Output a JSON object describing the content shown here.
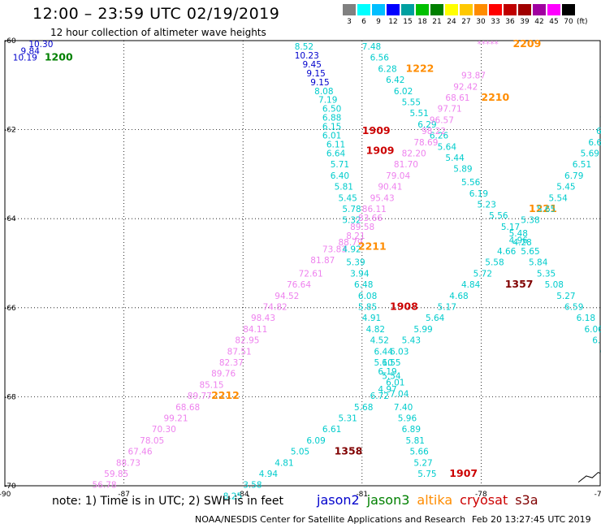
{
  "header": {
    "title": "12:00 – 23:59 UTC 02/19/2019",
    "subtitle": "12 hour collection of altimeter wave heights"
  },
  "scale": {
    "labels": [
      "3",
      "6",
      "9",
      "12",
      "15",
      "18",
      "21",
      "24",
      "27",
      "30",
      "33",
      "36",
      "39",
      "42",
      "45",
      "70"
    ],
    "colors": [
      "#808080",
      "#00ffff",
      "#00bfff",
      "#0000ff",
      "#00a0a0",
      "#00c000",
      "#008000",
      "#ffff00",
      "#ffc800",
      "#ff8c00",
      "#ff0000",
      "#c00000",
      "#a00000",
      "#a000a0",
      "#ff00ff",
      "#000000"
    ],
    "unit": "(ft)"
  },
  "axes": {
    "lon_labels": [
      "-90",
      "-87",
      "-84",
      "-81",
      "-78",
      "-75"
    ],
    "lat_labels": [
      "-60",
      "-62",
      "-64",
      "-66",
      "-68",
      "-70"
    ],
    "grid": true
  },
  "satellite_colors": {
    "jason2": "#0000cc",
    "jason3": "#008000",
    "altika": "#ff8c00",
    "cryosat": "#cc0000",
    "s3a": "#800000",
    "cyan": "#00cccc",
    "pink": "#ee82ee",
    "orange": "#ff8c00"
  },
  "map_labels": [
    {
      "t": "10.30",
      "lon": -89.4,
      "lat": -60.15,
      "c": "jason2"
    },
    {
      "t": "9.84",
      "lon": -89.6,
      "lat": -60.3,
      "c": "jason2"
    },
    {
      "t": "10.19",
      "lon": -89.8,
      "lat": -60.45,
      "c": "jason2"
    },
    {
      "t": "1200",
      "lon": -89.0,
      "lat": -60.45,
      "c": "jason3",
      "time": true
    },
    {
      "t": "8.52",
      "lon": -82.7,
      "lat": -60.2,
      "c": "cyan"
    },
    {
      "t": "10.23",
      "lon": -82.7,
      "lat": -60.4,
      "c": "jason2"
    },
    {
      "t": "9.45",
      "lon": -82.5,
      "lat": -60.6,
      "c": "jason2"
    },
    {
      "t": "9.15",
      "lon": -82.4,
      "lat": -60.8,
      "c": "jason2"
    },
    {
      "t": "9.15",
      "lon": -82.3,
      "lat": -61.0,
      "c": "jason2"
    },
    {
      "t": "8.08",
      "lon": -82.2,
      "lat": -61.2,
      "c": "cyan"
    },
    {
      "t": "7.19",
      "lon": -82.1,
      "lat": -61.4,
      "c": "cyan"
    },
    {
      "t": "6.50",
      "lon": -82.0,
      "lat": -61.6,
      "c": "cyan"
    },
    {
      "t": "6.88",
      "lon": -82.0,
      "lat": -61.8,
      "c": "cyan"
    },
    {
      "t": "6.15",
      "lon": -82.0,
      "lat": -62.0,
      "c": "cyan"
    },
    {
      "t": "6.01",
      "lon": -82.0,
      "lat": -62.2,
      "c": "cyan"
    },
    {
      "t": "6.11",
      "lon": -81.9,
      "lat": -62.4,
      "c": "cyan"
    },
    {
      "t": "6.64",
      "lon": -81.9,
      "lat": -62.6,
      "c": "cyan"
    },
    {
      "t": "5.71",
      "lon": -81.8,
      "lat": -62.85,
      "c": "cyan"
    },
    {
      "t": "6.40",
      "lon": -81.8,
      "lat": -63.1,
      "c": "cyan"
    },
    {
      "t": "5.81",
      "lon": -81.7,
      "lat": -63.35,
      "c": "cyan"
    },
    {
      "t": "5.45",
      "lon": -81.6,
      "lat": -63.6,
      "c": "cyan"
    },
    {
      "t": "5.78",
      "lon": -81.5,
      "lat": -63.85,
      "c": "cyan"
    },
    {
      "t": "5.32",
      "lon": -81.5,
      "lat": -64.1,
      "c": "cyan"
    },
    {
      "t": "1909",
      "lon": -81.0,
      "lat": -62.1,
      "c": "cryosat",
      "time": true
    },
    {
      "t": "1909",
      "lon": -80.9,
      "lat": -62.55,
      "c": "cryosat",
      "time": true
    },
    {
      "t": "7.48",
      "lon": -81.0,
      "lat": -60.2,
      "c": "cyan"
    },
    {
      "t": "6.56",
      "lon": -80.8,
      "lat": -60.45,
      "c": "cyan"
    },
    {
      "t": "6.28",
      "lon": -80.6,
      "lat": -60.7,
      "c": "cyan"
    },
    {
      "t": "1222",
      "lon": -79.9,
      "lat": -60.7,
      "c": "altika",
      "time": true
    },
    {
      "t": "6.42",
      "lon": -80.4,
      "lat": -60.95,
      "c": "cyan"
    },
    {
      "t": "6.02",
      "lon": -80.2,
      "lat": -61.2,
      "c": "cyan"
    },
    {
      "t": "5.55",
      "lon": -80.0,
      "lat": -61.45,
      "c": "cyan"
    },
    {
      "t": "5.51",
      "lon": -79.8,
      "lat": -61.7,
      "c": "cyan"
    },
    {
      "t": "6.29",
      "lon": -79.6,
      "lat": -61.95,
      "c": "cyan"
    },
    {
      "t": "6.26",
      "lon": -79.3,
      "lat": -62.2,
      "c": "cyan"
    },
    {
      "t": "5.64",
      "lon": -79.1,
      "lat": -62.45,
      "c": "cyan"
    },
    {
      "t": "5.44",
      "lon": -78.9,
      "lat": -62.7,
      "c": "cyan"
    },
    {
      "t": "5.89",
      "lon": -78.7,
      "lat": -62.95,
      "c": "cyan"
    },
    {
      "t": "5.56",
      "lon": -78.5,
      "lat": -63.25,
      "c": "cyan"
    },
    {
      "t": "6.19",
      "lon": -78.3,
      "lat": -63.5,
      "c": "cyan"
    },
    {
      "t": "5.23",
      "lon": -78.1,
      "lat": -63.75,
      "c": "cyan"
    },
    {
      "t": "5.56",
      "lon": -77.8,
      "lat": -64.0,
      "c": "cyan"
    },
    {
      "t": "5.17",
      "lon": -77.5,
      "lat": -64.25,
      "c": "cyan"
    },
    {
      "t": "5.48",
      "lon": -77.3,
      "lat": -64.4,
      "c": "cyan"
    },
    {
      "t": "4.28",
      "lon": -77.2,
      "lat": -64.6,
      "c": "cyan"
    },
    {
      "t": "5.65",
      "lon": -77.0,
      "lat": -64.8,
      "c": "cyan"
    },
    {
      "t": "5.84",
      "lon": -76.8,
      "lat": -65.05,
      "c": "cyan"
    },
    {
      "t": "5.35",
      "lon": -76.6,
      "lat": -65.3,
      "c": "cyan"
    },
    {
      "t": "5.08",
      "lon": -76.4,
      "lat": -65.55,
      "c": "cyan"
    },
    {
      "t": "5.27",
      "lon": -76.1,
      "lat": -65.8,
      "c": "cyan"
    },
    {
      "t": "6.59",
      "lon": -75.9,
      "lat": -66.05,
      "c": "cyan"
    },
    {
      "t": "6.18",
      "lon": -75.6,
      "lat": -66.3,
      "c": "cyan"
    },
    {
      "t": "6.06",
      "lon": -75.4,
      "lat": -66.55,
      "c": "cyan"
    },
    {
      "t": "6.15",
      "lon": -75.2,
      "lat": -66.8,
      "c": "cyan"
    },
    {
      "t": "6.1",
      "lon": -75.0,
      "lat": -67.05,
      "c": "cyan"
    },
    {
      "t": "*****",
      "lon": -78.1,
      "lat": -60.15,
      "c": "pink"
    },
    {
      "t": "2209",
      "lon": -77.2,
      "lat": -60.15,
      "c": "altika",
      "time": true
    },
    {
      "t": "93.87",
      "lon": -78.5,
      "lat": -60.85,
      "c": "pink"
    },
    {
      "t": "92.42",
      "lon": -78.7,
      "lat": -61.1,
      "c": "pink"
    },
    {
      "t": "68.61",
      "lon": -78.9,
      "lat": -61.35,
      "c": "pink"
    },
    {
      "t": "2210",
      "lon": -78.0,
      "lat": -61.35,
      "c": "altika",
      "time": true
    },
    {
      "t": "97.71",
      "lon": -79.1,
      "lat": -61.6,
      "c": "pink"
    },
    {
      "t": "96.57",
      "lon": -79.3,
      "lat": -61.85,
      "c": "pink"
    },
    {
      "t": "98.22",
      "lon": -79.5,
      "lat": -62.1,
      "c": "pink"
    },
    {
      "t": "78.69",
      "lon": -79.7,
      "lat": -62.35,
      "c": "pink"
    },
    {
      "t": "82.20",
      "lon": -80.0,
      "lat": -62.6,
      "c": "pink"
    },
    {
      "t": "81.70",
      "lon": -80.2,
      "lat": -62.85,
      "c": "pink"
    },
    {
      "t": "79.04",
      "lon": -80.4,
      "lat": -63.1,
      "c": "pink"
    },
    {
      "t": "90.41",
      "lon": -80.6,
      "lat": -63.35,
      "c": "pink"
    },
    {
      "t": "95.43",
      "lon": -80.8,
      "lat": -63.6,
      "c": "pink"
    },
    {
      "t": "86.11",
      "lon": -81.0,
      "lat": -63.85,
      "c": "pink"
    },
    {
      "t": "83.66",
      "lon": -81.1,
      "lat": -64.05,
      "c": "pink"
    },
    {
      "t": "89.58",
      "lon": -81.3,
      "lat": -64.25,
      "c": "pink"
    },
    {
      "t": "8.21",
      "lon": -81.4,
      "lat": -64.45,
      "c": "pink"
    },
    {
      "t": "88.79",
      "lon": -81.6,
      "lat": -64.6,
      "c": "pink"
    },
    {
      "t": "73.83",
      "lon": -82.0,
      "lat": -64.75,
      "c": "pink"
    },
    {
      "t": "81.87",
      "lon": -82.3,
      "lat": -65.0,
      "c": "pink"
    },
    {
      "t": "72.61",
      "lon": -82.6,
      "lat": -65.3,
      "c": "pink"
    },
    {
      "t": "76.64",
      "lon": -82.9,
      "lat": -65.55,
      "c": "pink"
    },
    {
      "t": "94.52",
      "lon": -83.2,
      "lat": -65.8,
      "c": "pink"
    },
    {
      "t": "74.82",
      "lon": -83.5,
      "lat": -66.05,
      "c": "pink"
    },
    {
      "t": "98.43",
      "lon": -83.8,
      "lat": -66.3,
      "c": "pink"
    },
    {
      "t": "84.11",
      "lon": -84.0,
      "lat": -66.55,
      "c": "pink"
    },
    {
      "t": "82.95",
      "lon": -84.2,
      "lat": -66.8,
      "c": "pink"
    },
    {
      "t": "87.51",
      "lon": -84.4,
      "lat": -67.05,
      "c": "pink"
    },
    {
      "t": "82.37",
      "lon": -84.6,
      "lat": -67.3,
      "c": "pink"
    },
    {
      "t": "89.76",
      "lon": -84.8,
      "lat": -67.55,
      "c": "pink"
    },
    {
      "t": "85.15",
      "lon": -85.1,
      "lat": -67.8,
      "c": "pink"
    },
    {
      "t": "89.77",
      "lon": -85.4,
      "lat": -68.05,
      "c": "pink"
    },
    {
      "t": "2212",
      "lon": -84.8,
      "lat": -68.05,
      "c": "altika",
      "time": true
    },
    {
      "t": "68.68",
      "lon": -85.7,
      "lat": -68.3,
      "c": "pink"
    },
    {
      "t": "99.21",
      "lon": -86.0,
      "lat": -68.55,
      "c": "pink"
    },
    {
      "t": "70.30",
      "lon": -86.3,
      "lat": -68.8,
      "c": "pink"
    },
    {
      "t": "78.05",
      "lon": -86.6,
      "lat": -69.05,
      "c": "pink"
    },
    {
      "t": "67.46",
      "lon": -86.9,
      "lat": -69.3,
      "c": "pink"
    },
    {
      "t": "88.73",
      "lon": -87.2,
      "lat": -69.55,
      "c": "pink"
    },
    {
      "t": "59.85",
      "lon": -87.5,
      "lat": -69.8,
      "c": "pink"
    },
    {
      "t": "56.78",
      "lon": -87.8,
      "lat": -70.05,
      "c": "pink"
    },
    {
      "t": "4.92",
      "lon": -81.5,
      "lat": -64.75,
      "c": "cyan"
    },
    {
      "t": "2211",
      "lon": -81.1,
      "lat": -64.7,
      "c": "altika",
      "time": true
    },
    {
      "t": "5.39",
      "lon": -81.4,
      "lat": -65.05,
      "c": "cyan"
    },
    {
      "t": "3.94",
      "lon": -81.3,
      "lat": -65.3,
      "c": "cyan"
    },
    {
      "t": "6.48",
      "lon": -81.2,
      "lat": -65.55,
      "c": "cyan"
    },
    {
      "t": "6.08",
      "lon": -81.1,
      "lat": -65.8,
      "c": "cyan"
    },
    {
      "t": "5.85",
      "lon": -81.1,
      "lat": -66.05,
      "c": "cyan"
    },
    {
      "t": "1908",
      "lon": -80.3,
      "lat": -66.05,
      "c": "cryosat",
      "time": true
    },
    {
      "t": "4.91",
      "lon": -81.0,
      "lat": -66.3,
      "c": "cyan"
    },
    {
      "t": "4.82",
      "lon": -80.9,
      "lat": -66.55,
      "c": "cyan"
    },
    {
      "t": "4.52",
      "lon": -80.8,
      "lat": -66.8,
      "c": "cyan"
    },
    {
      "t": "6.44",
      "lon": -80.7,
      "lat": -67.05,
      "c": "cyan"
    },
    {
      "t": "5.10",
      "lon": -80.7,
      "lat": -67.3,
      "c": "cyan"
    },
    {
      "t": "6.19",
      "lon": -80.6,
      "lat": -67.5,
      "c": "cyan"
    },
    {
      "t": "5.54",
      "lon": -80.5,
      "lat": -67.6,
      "c": "cyan"
    },
    {
      "t": "6.01",
      "lon": -80.4,
      "lat": -67.75,
      "c": "cyan"
    },
    {
      "t": "4.97",
      "lon": -80.6,
      "lat": -67.9,
      "c": "cyan"
    },
    {
      "t": "7.04",
      "lon": -80.3,
      "lat": -68.0,
      "c": "cyan"
    },
    {
      "t": "6.72",
      "lon": -80.8,
      "lat": -68.05,
      "c": "cyan"
    },
    {
      "t": "7.40",
      "lon": -80.2,
      "lat": -68.3,
      "c": "cyan"
    },
    {
      "t": "5.68",
      "lon": -81.2,
      "lat": -68.3,
      "c": "cyan"
    },
    {
      "t": "5.96",
      "lon": -80.1,
      "lat": -68.55,
      "c": "cyan"
    },
    {
      "t": "5.31",
      "lon": -81.6,
      "lat": -68.55,
      "c": "cyan"
    },
    {
      "t": "6.89",
      "lon": -80.0,
      "lat": -68.8,
      "c": "cyan"
    },
    {
      "t": "6.61",
      "lon": -82.0,
      "lat": -68.8,
      "c": "cyan"
    },
    {
      "t": "5.81",
      "lon": -79.9,
      "lat": -69.05,
      "c": "cyan"
    },
    {
      "t": "6.09",
      "lon": -82.4,
      "lat": -69.05,
      "c": "cyan"
    },
    {
      "t": "5.66",
      "lon": -79.8,
      "lat": -69.3,
      "c": "cyan"
    },
    {
      "t": "5.05",
      "lon": -82.8,
      "lat": -69.3,
      "c": "cyan"
    },
    {
      "t": "1358",
      "lon": -81.7,
      "lat": -69.3,
      "c": "s3a",
      "time": true
    },
    {
      "t": "5.27",
      "lon": -79.7,
      "lat": -69.55,
      "c": "cyan"
    },
    {
      "t": "4.81",
      "lon": -83.2,
      "lat": -69.55,
      "c": "cyan"
    },
    {
      "t": "5.75",
      "lon": -79.6,
      "lat": -69.8,
      "c": "cyan"
    },
    {
      "t": "1907",
      "lon": -78.8,
      "lat": -69.8,
      "c": "cryosat",
      "time": true
    },
    {
      "t": "4.94",
      "lon": -83.6,
      "lat": -69.8,
      "c": "cyan"
    },
    {
      "t": "3.58",
      "lon": -84.0,
      "lat": -70.05,
      "c": "cyan"
    },
    {
      "t": "8.25",
      "lon": -84.5,
      "lat": -70.3,
      "c": "cyan"
    },
    {
      "t": "5.99",
      "lon": -79.7,
      "lat": -66.55,
      "c": "cyan"
    },
    {
      "t": "5.64",
      "lon": -79.4,
      "lat": -66.3,
      "c": "cyan"
    },
    {
      "t": "5.17",
      "lon": -79.1,
      "lat": -66.05,
      "c": "cyan"
    },
    {
      "t": "4.68",
      "lon": -78.8,
      "lat": -65.8,
      "c": "cyan"
    },
    {
      "t": "4.84",
      "lon": -78.5,
      "lat": -65.55,
      "c": "cyan"
    },
    {
      "t": "5.72",
      "lon": -78.2,
      "lat": -65.3,
      "c": "cyan"
    },
    {
      "t": "5.58",
      "lon": -77.9,
      "lat": -65.05,
      "c": "cyan"
    },
    {
      "t": "4.66",
      "lon": -77.6,
      "lat": -64.8,
      "c": "cyan"
    },
    {
      "t": "4.96",
      "lon": -77.3,
      "lat": -64.55,
      "c": "cyan"
    },
    {
      "t": "1357",
      "lon": -77.4,
      "lat": -65.55,
      "c": "s3a",
      "time": true
    },
    {
      "t": "5.43",
      "lon": -80.0,
      "lat": -66.8,
      "c": "cyan"
    },
    {
      "t": "6.03",
      "lon": -80.3,
      "lat": -67.05,
      "c": "cyan"
    },
    {
      "t": "6.55",
      "lon": -80.5,
      "lat": -67.3,
      "c": "cyan"
    },
    {
      "t": "5.38",
      "lon": -77.0,
      "lat": -64.1,
      "c": "cyan"
    },
    {
      "t": "1221",
      "lon": -76.8,
      "lat": -63.85,
      "c": "altika",
      "time": true
    },
    {
      "t": "5.65",
      "lon": -76.6,
      "lat": -63.85,
      "c": "cyan"
    },
    {
      "t": "5.54",
      "lon": -76.3,
      "lat": -63.6,
      "c": "cyan"
    },
    {
      "t": "5.45",
      "lon": -76.1,
      "lat": -63.35,
      "c": "cyan"
    },
    {
      "t": "6.79",
      "lon": -75.9,
      "lat": -63.1,
      "c": "cyan"
    },
    {
      "t": "6.51",
      "lon": -75.7,
      "lat": -62.85,
      "c": "cyan"
    },
    {
      "t": "5.69",
      "lon": -75.5,
      "lat": -62.6,
      "c": "cyan"
    },
    {
      "t": "6.68",
      "lon": -75.3,
      "lat": -62.35,
      "c": "cyan"
    },
    {
      "t": "6.20",
      "lon": -75.1,
      "lat": -62.1,
      "c": "cyan"
    },
    {
      "t": "7.33",
      "lon": -75.0,
      "lat": -61.85,
      "c": "cyan"
    },
    {
      "t": "5.9",
      "lon": -74.8,
      "lat": -61.6,
      "c": "cyan"
    }
  ],
  "footer": {
    "note": "note: 1) Time is in UTC; 2) SWH is in feet",
    "legend": [
      {
        "t": "jason2",
        "c": "#0000cc"
      },
      {
        "t": "jason3",
        "c": "#008000"
      },
      {
        "t": "altika",
        "c": "#ff8c00"
      },
      {
        "t": "cryosat",
        "c": "#cc0000"
      },
      {
        "t": "s3a",
        "c": "#800000"
      }
    ],
    "credit": "NOAA/NESDIS Center for Satellite Applications and Research",
    "timestamp": "Feb 20 13:27:45 UTC 2019"
  }
}
